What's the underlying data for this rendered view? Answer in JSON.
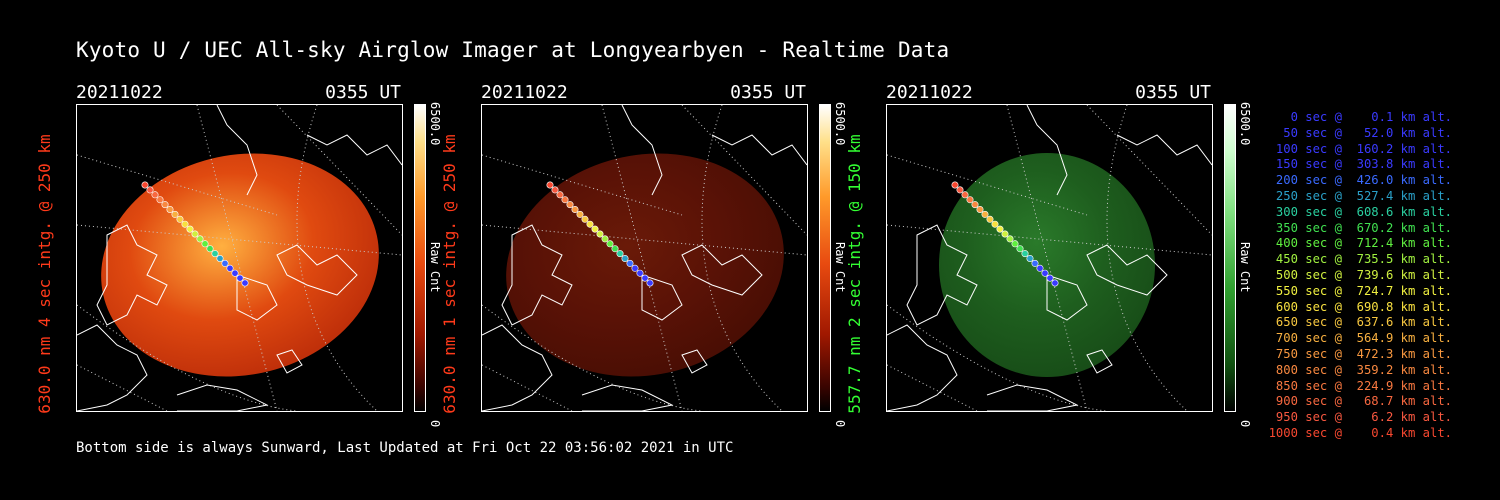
{
  "title": "Kyoto U / UEC All-sky Airglow Imager at Longyearbyen - Realtime Data",
  "footer": "Bottom side is always Sunward, Last Updated at Fri Oct 22 03:56:02 2021 in UTC",
  "panels": [
    {
      "date": "20211022",
      "time": "0355 UT",
      "label": "630.0 nm 4 sec intg. @ 250 km",
      "label_color": "#ff3a1a",
      "cbar_max": "6500.0",
      "cbar_unit": "Raw Cnt",
      "cbar_min": "0",
      "theme": "red-bright"
    },
    {
      "date": "20211022",
      "time": "0355 UT",
      "label": "630.0 nm 1 sec intg. @ 250 km",
      "label_color": "#ff3a1a",
      "cbar_max": "6500.0",
      "cbar_unit": "Raw Cnt",
      "cbar_min": "0",
      "theme": "red-dark"
    },
    {
      "date": "20211022",
      "time": "0355 UT",
      "label": "557.7 nm 2 sec intg. @ 150 km",
      "label_color": "#33ff33",
      "cbar_max": "6500.0",
      "cbar_unit": "Raw Cnt",
      "cbar_min": "0",
      "theme": "green"
    }
  ],
  "legend": [
    {
      "text": "   0 sec @    0.1 km alt.",
      "color": "#3a3aff"
    },
    {
      "text": "  50 sec @   52.0 km alt.",
      "color": "#3a3aff"
    },
    {
      "text": " 100 sec @  160.2 km alt.",
      "color": "#3a3aff"
    },
    {
      "text": " 150 sec @  303.8 km alt.",
      "color": "#3a3aff"
    },
    {
      "text": " 200 sec @  426.0 km alt.",
      "color": "#3a6aff"
    },
    {
      "text": " 250 sec @  527.4 km alt.",
      "color": "#2aa0c8"
    },
    {
      "text": " 300 sec @  608.6 km alt.",
      "color": "#2ad0a0"
    },
    {
      "text": " 350 sec @  670.2 km alt.",
      "color": "#40e050"
    },
    {
      "text": " 400 sec @  712.4 km alt.",
      "color": "#60f040"
    },
    {
      "text": " 450 sec @  735.5 km alt.",
      "color": "#a0f040"
    },
    {
      "text": " 500 sec @  739.6 km alt.",
      "color": "#d0f040"
    },
    {
      "text": " 550 sec @  724.7 km alt.",
      "color": "#f0f040"
    },
    {
      "text": " 600 sec @  690.8 km alt.",
      "color": "#f8e040"
    },
    {
      "text": " 650 sec @  637.6 km alt.",
      "color": "#f8c840"
    },
    {
      "text": " 700 sec @  564.9 km alt.",
      "color": "#f8b040"
    },
    {
      "text": " 750 sec @  472.3 km alt.",
      "color": "#f89840"
    },
    {
      "text": " 800 sec @  359.2 km alt.",
      "color": "#f88840"
    },
    {
      "text": " 850 sec @  224.9 km alt.",
      "color": "#f87840"
    },
    {
      "text": " 900 sec @   68.7 km alt.",
      "color": "#f86840"
    },
    {
      "text": " 950 sec @    6.2 km alt.",
      "color": "#f85840"
    },
    {
      "text": "1000 sec @    0.4 km alt.",
      "color": "#f84830"
    }
  ]
}
